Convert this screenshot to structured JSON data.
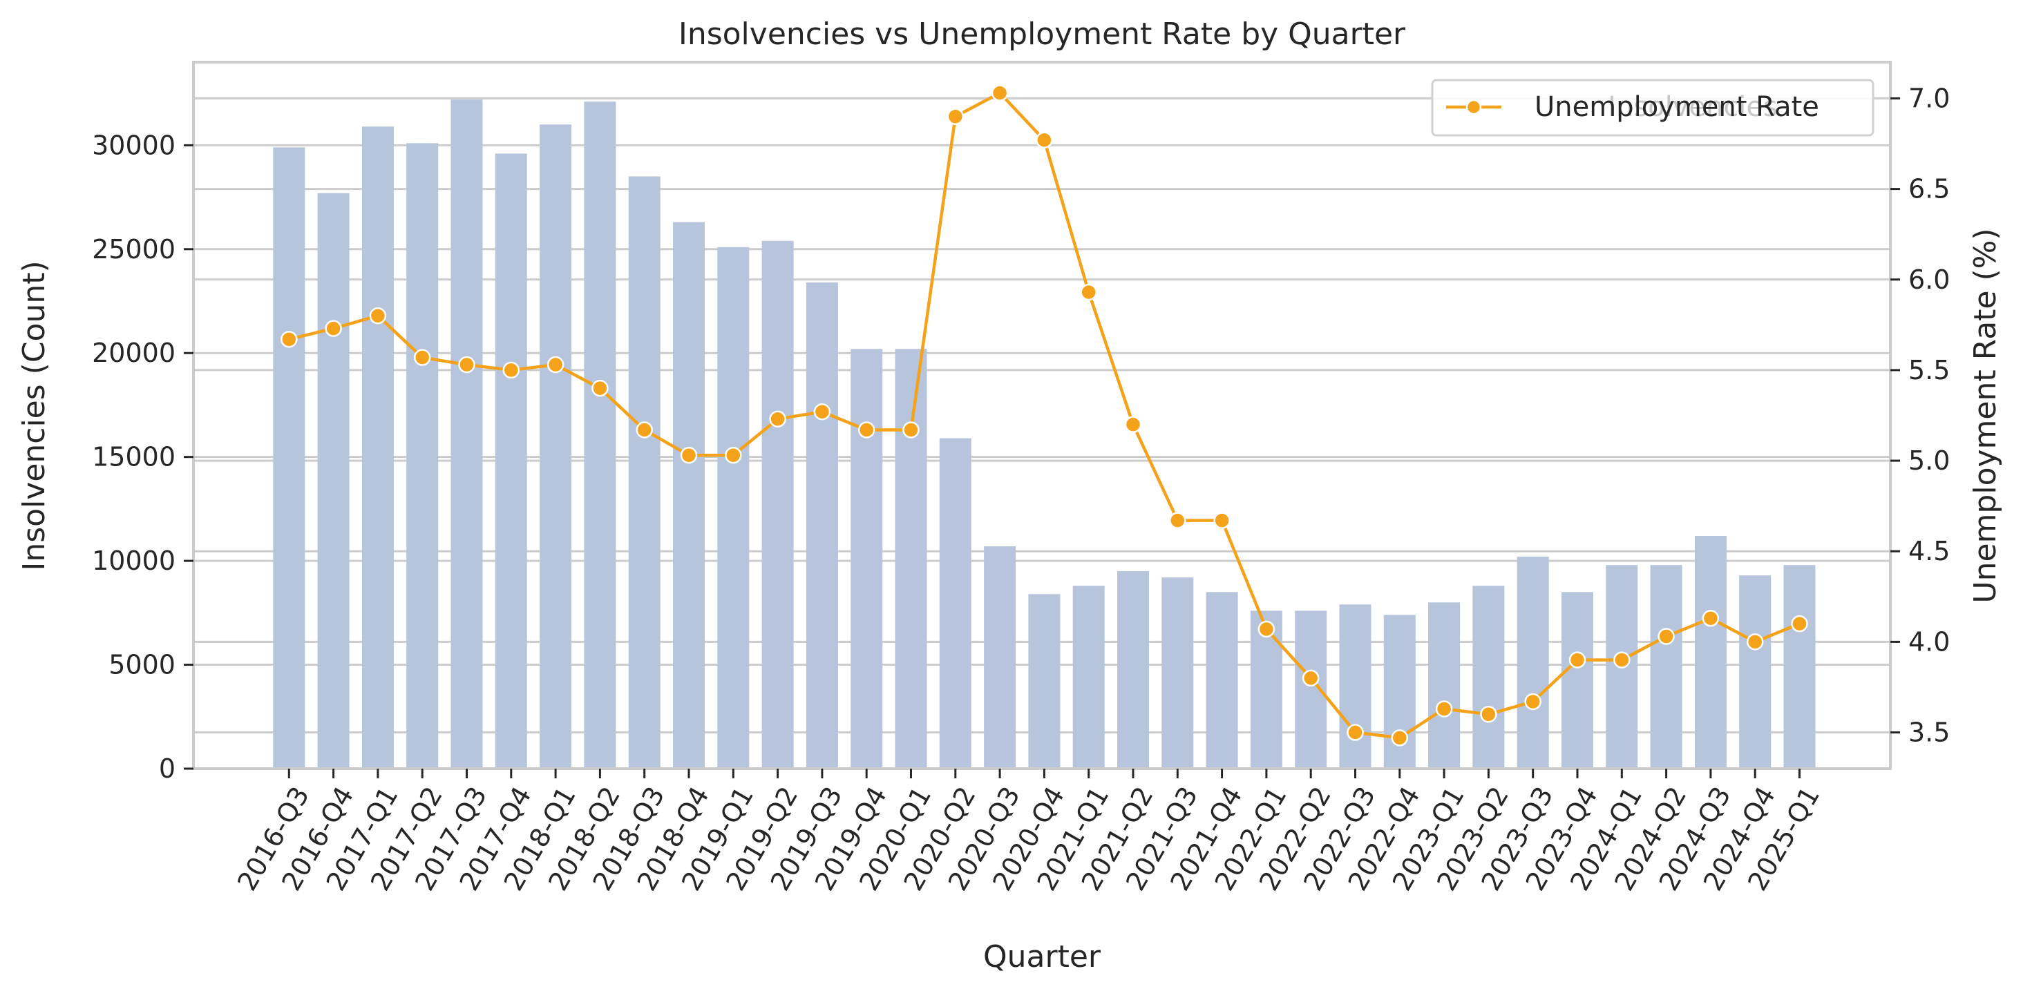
{
  "chart_data": {
    "type": "bar",
    "title": "Insolvencies vs Unemployment Rate by Quarter",
    "xlabel": "Quarter",
    "ylabel": "Insolvencies (Count)",
    "y2label": "Unemployment Rate (%)",
    "categories": [
      "2016-Q3",
      "2016-Q4",
      "2017-Q1",
      "2017-Q2",
      "2017-Q3",
      "2017-Q4",
      "2018-Q1",
      "2018-Q2",
      "2018-Q3",
      "2018-Q4",
      "2019-Q1",
      "2019-Q2",
      "2019-Q3",
      "2019-Q4",
      "2020-Q1",
      "2020-Q2",
      "2020-Q3",
      "2020-Q4",
      "2021-Q1",
      "2021-Q2",
      "2021-Q3",
      "2021-Q4",
      "2022-Q1",
      "2022-Q2",
      "2022-Q3",
      "2022-Q4",
      "2023-Q1",
      "2023-Q2",
      "2023-Q3",
      "2023-Q4",
      "2024-Q1",
      "2024-Q2",
      "2024-Q3",
      "2024-Q4",
      "2025-Q1"
    ],
    "series": [
      {
        "type": "bar",
        "axis": "left",
        "color": "#b6c5dc",
        "values": [
          29900,
          27700,
          30900,
          30100,
          32200,
          29600,
          31000,
          32100,
          28500,
          26300,
          25100,
          25400,
          23400,
          20200,
          20200,
          15900,
          10700,
          8400,
          8800,
          9500,
          9200,
          8500,
          7600,
          7600,
          7900,
          7400,
          8000,
          8800,
          10200,
          8500,
          9800,
          9800,
          11200,
          9300,
          9800
        ]
      },
      {
        "name": "Unemployment Rate",
        "type": "line",
        "axis": "right",
        "color": "#f5a21b",
        "values": [
          5.67,
          5.73,
          5.8,
          5.57,
          5.53,
          5.5,
          5.53,
          5.4,
          5.17,
          5.03,
          5.03,
          5.23,
          5.27,
          5.17,
          5.17,
          6.9,
          7.03,
          6.77,
          5.93,
          5.2,
          4.67,
          4.67,
          4.07,
          3.8,
          3.5,
          3.47,
          3.63,
          3.6,
          3.67,
          3.9,
          3.9,
          4.03,
          4.13,
          4.0,
          4.1
        ]
      }
    ],
    "ylim": [
      0,
      34000
    ],
    "y2lim": [
      3.3,
      7.2
    ],
    "yticks": [
      0,
      5000,
      10000,
      15000,
      20000,
      25000,
      30000
    ],
    "y2ticks": [
      3.5,
      4.0,
      4.5,
      5.0,
      5.5,
      6.0,
      6.5,
      7.0
    ],
    "legend": {
      "placement": "top-right",
      "entries": [
        "Unemployment Rate"
      ],
      "underlying_text": "Insolvencies"
    },
    "grid": true
  }
}
